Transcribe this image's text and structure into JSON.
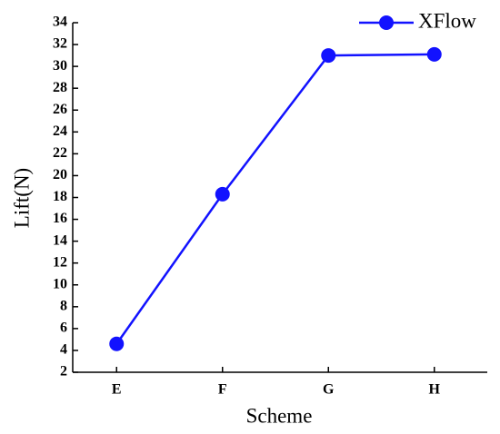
{
  "chart_data": {
    "type": "line",
    "x_label": "Scheme",
    "y_label": "Lift(N)",
    "categories": [
      "E",
      "F",
      "G",
      "H"
    ],
    "series": [
      {
        "name": "XFlow",
        "color": "#1212ff",
        "values": [
          4.6,
          18.3,
          31.0,
          31.1
        ]
      }
    ],
    "ylim": [
      2,
      34
    ],
    "yticks": [
      2,
      4,
      6,
      8,
      10,
      12,
      14,
      16,
      18,
      20,
      22,
      24,
      26,
      28,
      30,
      32,
      34
    ],
    "legend": "top-right"
  }
}
